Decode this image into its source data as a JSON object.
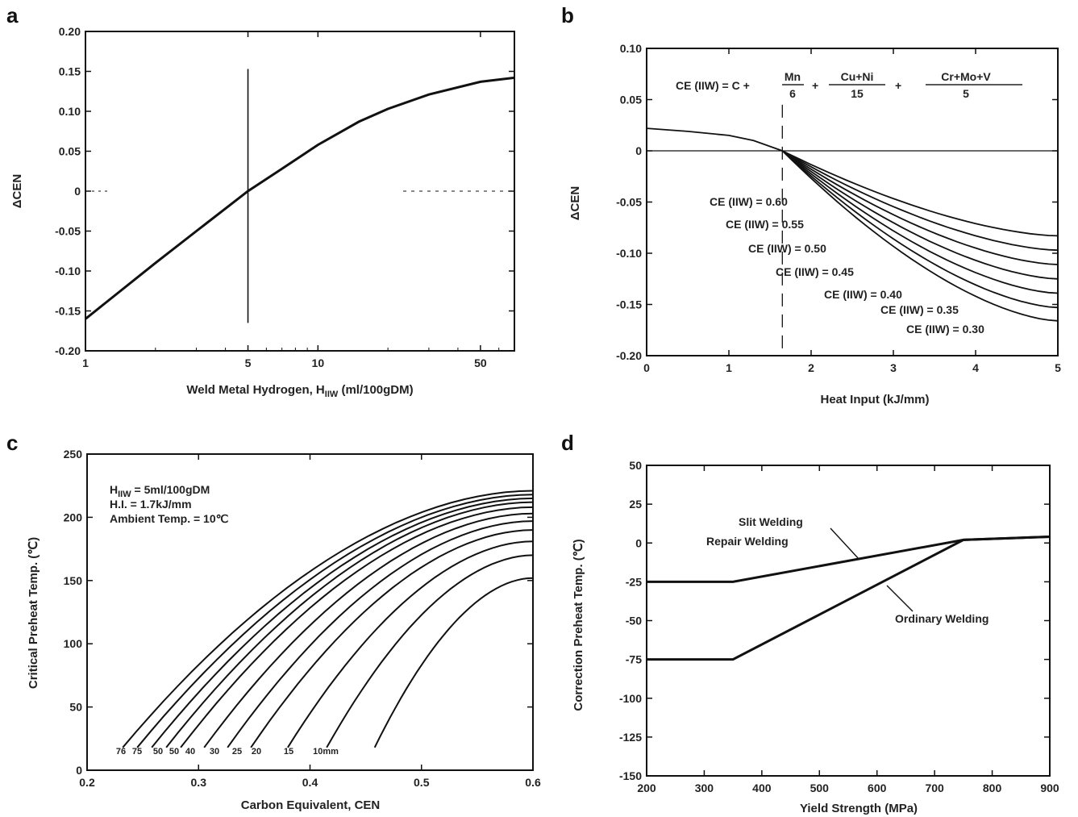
{
  "chart_data": [
    {
      "panel": "a",
      "type": "line",
      "xscale": "log",
      "xlim": [
        1,
        70
      ],
      "ylim": [
        -0.2,
        0.2
      ],
      "xticks": [
        "1",
        "5",
        "10",
        "50"
      ],
      "yticks": [
        "-0.20",
        "-0.15",
        "-0.10",
        "-0.05",
        "0",
        "0.05",
        "0.10",
        "0.15",
        "0.20"
      ],
      "xlabel": "Weld Metal Hydrogen, H",
      "xlabel_sub": "IIW",
      "xlabel_unit": " (ml/100gDM)",
      "ylabel": "ΔCEN",
      "reference_x": 5,
      "series": [
        {
          "x": [
            1,
            2,
            3,
            5,
            7,
            10,
            15,
            20,
            30,
            50,
            70
          ],
          "y": [
            -0.16,
            -0.09,
            -0.05,
            0.0,
            0.028,
            0.058,
            0.087,
            0.103,
            0.121,
            0.137,
            0.142
          ]
        }
      ]
    },
    {
      "panel": "b",
      "type": "line",
      "xlim": [
        0,
        5
      ],
      "ylim": [
        -0.2,
        0.1
      ],
      "xticks": [
        "0",
        "1",
        "2",
        "3",
        "4",
        "5"
      ],
      "yticks": [
        "-0.20",
        "-0.15",
        "-0.10",
        "-0.05",
        "0",
        "0.05",
        "0.10"
      ],
      "xlabel": "Heat Input (kJ/mm)",
      "ylabel": "ΔCEN",
      "formula": "CE (IIW) = C + Mn/6 + Cu+Ni/15 + Cr+Mo+V/5",
      "formula_parts": {
        "lhs": "CE (IIW) = C +",
        "f1n": "Mn",
        "f1d": "6",
        "f2n": "Cu+Ni",
        "f2d": "15",
        "f3n": "Cr+Mo+V",
        "f3d": "5"
      },
      "reference_x": 1.65,
      "common": {
        "x": [
          0,
          0.5,
          1.0,
          1.3,
          1.65
        ],
        "y": [
          0.022,
          0.019,
          0.015,
          0.01,
          0.0
        ]
      },
      "series": [
        {
          "name": "CE (IIW) = 0.60",
          "end": -0.083
        },
        {
          "name": "CE (IIW) = 0.55",
          "end": -0.097
        },
        {
          "name": "CE (IIW) = 0.50",
          "end": -0.111
        },
        {
          "name": "CE (IIW) = 0.45",
          "end": -0.125
        },
        {
          "name": "CE (IIW) = 0.40",
          "end": -0.139
        },
        {
          "name": "CE (IIW) = 0.35",
          "end": -0.153
        },
        {
          "name": "CE (IIW) = 0.30",
          "end": -0.166
        }
      ]
    },
    {
      "panel": "c",
      "type": "line",
      "xlim": [
        0.2,
        0.6
      ],
      "ylim": [
        0,
        250
      ],
      "xticks": [
        "0.2",
        "0.3",
        "0.4",
        "0.5",
        "0.6"
      ],
      "yticks": [
        "0",
        "50",
        "100",
        "150",
        "200",
        "250"
      ],
      "xlabel": "Carbon Equivalent, CEN",
      "ylabel": "Critical Preheat Temp. (℃)",
      "conditions": [
        "H",
        "IIW",
        " = 5ml/100gDM",
        "H.I. = 1.7kJ/mm",
        "Ambient Temp. = 10℃"
      ],
      "thickness_labels": [
        "76",
        "75",
        "50",
        "50",
        "40",
        "30",
        "25",
        "20",
        "15",
        "10mm"
      ],
      "series": [
        {
          "x0": 0.232,
          "end": 221
        },
        {
          "x0": 0.245,
          "end": 218
        },
        {
          "x0": 0.258,
          "end": 215
        },
        {
          "x0": 0.271,
          "end": 212
        },
        {
          "x0": 0.284,
          "end": 208
        },
        {
          "x0": 0.305,
          "end": 203
        },
        {
          "x0": 0.326,
          "end": 197
        },
        {
          "x0": 0.347,
          "end": 190
        },
        {
          "x0": 0.38,
          "end": 181
        },
        {
          "x0": 0.415,
          "end": 170
        },
        {
          "x0": 0.458,
          "end": 152
        }
      ]
    },
    {
      "panel": "d",
      "type": "line",
      "xlim": [
        200,
        900
      ],
      "ylim": [
        -150,
        50
      ],
      "xticks": [
        "200",
        "300",
        "400",
        "500",
        "600",
        "700",
        "800",
        "900"
      ],
      "yticks": [
        "-150",
        "-125",
        "-100",
        "-75",
        "-50",
        "-25",
        "0",
        "25",
        "50"
      ],
      "xlabel": "Yield Strength (MPa)",
      "ylabel": "Correction Preheat Temp. (℃)",
      "series": [
        {
          "name": "Slit Welding / Repair Welding",
          "x": [
            200,
            350,
            750,
            900
          ],
          "y": [
            -25,
            -25,
            2,
            4
          ]
        },
        {
          "name": "Ordinary Welding",
          "x": [
            200,
            350,
            750,
            900
          ],
          "y": [
            -75,
            -75,
            2,
            4
          ]
        }
      ],
      "annotations": [
        "Slit Welding",
        "Repair Welding",
        "Ordinary Welding"
      ]
    }
  ],
  "panels": {
    "a": "a",
    "b": "b",
    "c": "c",
    "d": "d"
  }
}
